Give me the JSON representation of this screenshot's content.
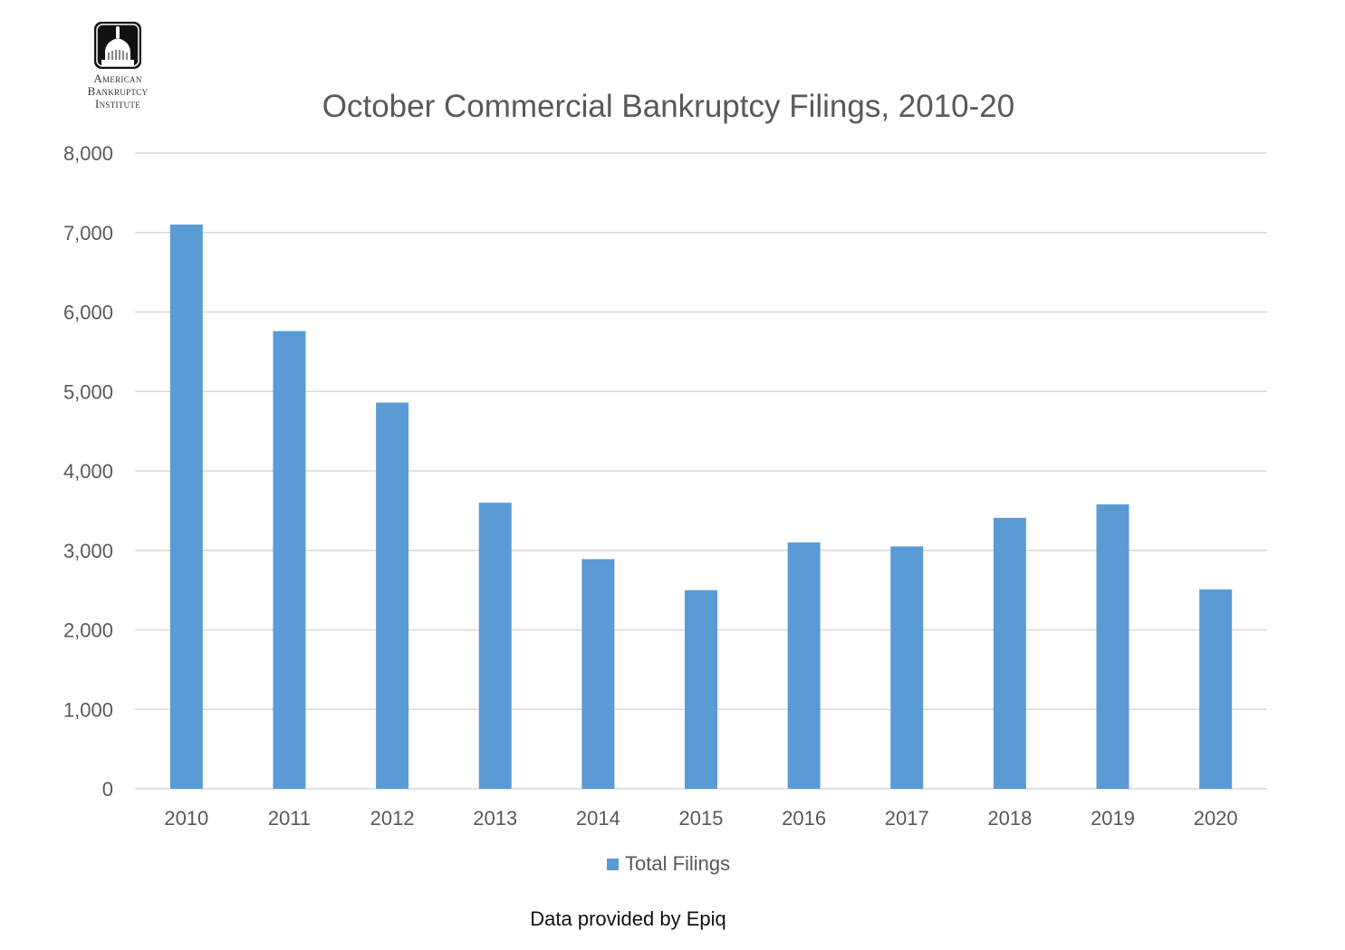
{
  "logo": {
    "lines": [
      "American",
      "Bankruptcy",
      "Institute"
    ],
    "icon": "capitol-dome-icon"
  },
  "footer": {
    "note": "Data provided by Epiq"
  },
  "colors": {
    "bar": "#5b9bd5",
    "grid": "#d9d9d9",
    "axis_text": "#595959",
    "title": "#595959"
  },
  "chart_data": {
    "type": "bar",
    "title": "October Commercial Bankruptcy Filings, 2010-20",
    "categories": [
      "2010",
      "2011",
      "2012",
      "2013",
      "2014",
      "2015",
      "2016",
      "2017",
      "2018",
      "2019",
      "2020"
    ],
    "series": [
      {
        "name": "Total Filings",
        "values": [
          7100,
          5760,
          4860,
          3600,
          2890,
          2500,
          3100,
          3050,
          3410,
          3580,
          2510
        ]
      }
    ],
    "ylim": [
      0,
      8000
    ],
    "yticks": [
      0,
      1000,
      2000,
      3000,
      4000,
      5000,
      6000,
      7000,
      8000
    ],
    "ytick_labels": [
      "0",
      "1,000",
      "2,000",
      "3,000",
      "4,000",
      "5,000",
      "6,000",
      "7,000",
      "8,000"
    ],
    "xlabel": "",
    "ylabel": "",
    "grid": true,
    "legend": "bottom-center"
  }
}
